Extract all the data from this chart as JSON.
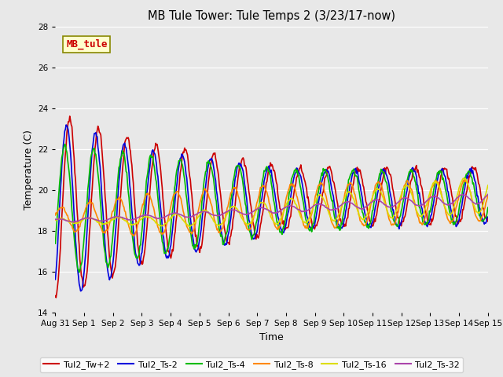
{
  "title": "MB Tule Tower: Tule Temps 2 (3/23/17-now)",
  "xlabel": "Time",
  "ylabel": "Temperature (C)",
  "ylim": [
    14,
    28
  ],
  "yticks": [
    14,
    16,
    18,
    20,
    22,
    24,
    26,
    28
  ],
  "bg_color": "#e8e8e8",
  "legend_bg": "#ffffff",
  "series_colors": {
    "Tul2_Tw+2": "#cc0000",
    "Tul2_Ts-2": "#0000dd",
    "Tul2_Ts-4": "#00bb00",
    "Tul2_Ts-8": "#ff8800",
    "Tul2_Ts-16": "#dddd00",
    "Tul2_Ts-32": "#aa44aa"
  },
  "watermark": {
    "text": "MB_tule",
    "color": "#cc0000",
    "bg": "#ffffcc",
    "border": "#888800",
    "fontsize": 9
  },
  "xtick_labels": [
    "Aug 31",
    "Sep 1",
    "Sep 2",
    "Sep 3",
    "Sep 4",
    "Sep 5",
    "Sep 6",
    "Sep 7",
    "Sep 8",
    "Sep 9",
    "Sep 10",
    "Sep 11",
    "Sep 12",
    "Sep 13",
    "Sep 14",
    "Sep 15"
  ],
  "lw": 1.2
}
